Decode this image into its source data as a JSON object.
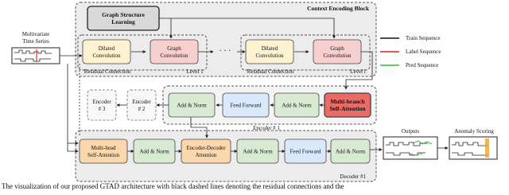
{
  "input": {
    "label": [
      "Multivariate",
      "Time Series"
    ]
  },
  "context_block": {
    "title": "Context Encoding Block",
    "graph_structure_learning": [
      "Graph Structure",
      "Learning"
    ],
    "levels": [
      {
        "dilated": [
          "Dilated",
          "Convolution"
        ],
        "graph": [
          "Graph",
          "Convolution"
        ],
        "residual": "Residual Connection",
        "level": "Level 1"
      },
      {
        "dilated": [
          "Dilated",
          "Convolution"
        ],
        "graph": [
          "Graph",
          "Convolution"
        ],
        "residual": "Residual Connection",
        "level": "Level l"
      }
    ],
    "ellipsis": "· · ·"
  },
  "encoder": {
    "label": "Encoder # 1",
    "stacked": [
      [
        "Encoder",
        "# 3"
      ],
      [
        "Encoder",
        "# 2"
      ]
    ],
    "blocks": [
      [
        "Add & Norm"
      ],
      [
        "Feed Forward"
      ],
      [
        "Add & Norm"
      ],
      [
        "Multi-branch",
        "Self-Attention"
      ]
    ]
  },
  "decoder": {
    "label": "Decoder #1",
    "blocks": [
      [
        "Multi-head",
        "Self-Attention"
      ],
      [
        "Add & Norm"
      ],
      [
        "Encoder-Decoder",
        "Attention"
      ],
      [
        "Add & Norm"
      ],
      [
        "Feed Forward"
      ],
      [
        "Add & Norm"
      ]
    ]
  },
  "outputs": {
    "label": "Outputs"
  },
  "anomaly_scoring": {
    "label": "Anomaly Scoring"
  },
  "legend": [
    "Train Sequence",
    "Label Sequence",
    "Pred Sequence"
  ],
  "caption": "The visualization of our proposed GTAD architecture with black dashed lines denoting the residual connections and the"
}
